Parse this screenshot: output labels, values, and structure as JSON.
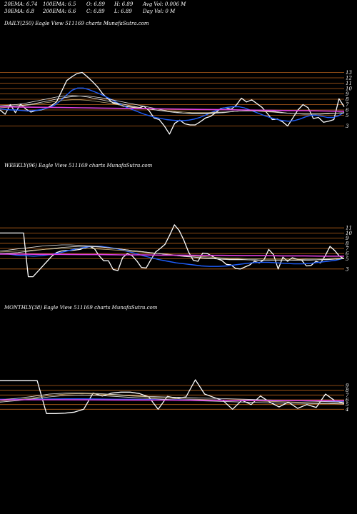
{
  "header": {
    "ema20": "20EMA: 6.74",
    "ema100": "100EMA: 6.5",
    "open": "O: 6.89",
    "high": "H: 6.89",
    "avg_vol": "Avg Vol: 0.006  M",
    "ema30": "30EMA: 6.8",
    "ema200": "200EMA: 6.6",
    "close": "C: 6.89",
    "low": "L: 6.89",
    "day_vol": "Day Vol: 0  M"
  },
  "colors": {
    "background": "#000000",
    "price": "#ffffff",
    "ema_short": "#1f5fff",
    "ema_mid": "#e0e0e0",
    "ema_tan": "#c8b27a",
    "avg_line": "#e040e0",
    "grid": "#b8621b"
  },
  "chart_data": [
    {
      "type": "line",
      "title": "DAILY(250) Eagle  View  511169 charts MunafaSutra.com",
      "ticks": [
        "13",
        "12",
        "11",
        "10",
        "9",
        "8",
        "7",
        "6",
        "5",
        "3"
      ],
      "tick_values": [
        13,
        12,
        11,
        10,
        9,
        8,
        7,
        6,
        5,
        3
      ],
      "ylim": [
        2,
        14
      ],
      "series": [
        {
          "role": "price",
          "color": "#ffffff",
          "values": [
            6,
            5.2,
            7,
            5.5,
            7.1,
            6.2,
            5.6,
            5.9,
            6,
            6.3,
            6.8,
            7.5,
            9.5,
            11.5,
            12.2,
            12.8,
            13,
            12.2,
            11.3,
            10.3,
            9,
            8.1,
            7.3,
            7.1,
            6.7,
            6.6,
            6.5,
            6.4,
            6.7,
            5.9,
            4.5,
            4.2,
            3,
            1.5,
            3.5,
            4.1,
            3.4,
            3.2,
            3.2,
            3.8,
            4.5,
            4.8,
            5.5,
            6.3,
            6.4,
            6.1,
            6.9,
            8.2,
            7.5,
            7.9,
            7.2,
            6.5,
            5.4,
            4.2,
            4.3,
            3.8,
            3,
            4.5,
            6,
            7,
            6.4,
            4.4,
            4.6,
            3.7,
            3.9,
            4.2,
            8.1,
            6.6
          ]
        },
        {
          "role": "ema-fast",
          "color": "#1f5fff",
          "values": [
            6.2,
            6.1,
            6,
            6,
            5.9,
            5.8,
            5.9,
            6,
            6.2,
            6.5,
            7,
            7.8,
            8.8,
            9.7,
            10.1,
            10.1,
            9.8,
            9.4,
            9,
            8.5,
            8,
            7.4,
            6.9,
            6.4,
            6,
            5.6,
            5.2,
            4.9,
            4.6,
            4.4,
            4.2,
            4.1,
            4,
            4,
            4.1,
            4.3,
            4.6,
            5,
            5.5,
            5.9,
            6.3,
            6.5,
            6.6,
            6.6,
            6.4,
            6,
            5.6,
            5.2,
            4.8,
            4.5,
            4.2,
            4,
            3.9,
            4,
            4.3,
            4.7,
            5,
            5,
            4.8,
            4.6,
            4.6,
            4.9,
            5.6
          ]
        },
        {
          "role": "ema-slow-1",
          "color": "#e0e0e0",
          "values": [
            6.6,
            6.7,
            6.8,
            6.9,
            7.1,
            7.4,
            7.7,
            8,
            8.3,
            8.5,
            8.6,
            8.6,
            8.4,
            8.2,
            7.9,
            7.6,
            7.3,
            7,
            6.7,
            6.4,
            6.1,
            5.8,
            5.6,
            5.4,
            5.3,
            5.3,
            5.3,
            5.4,
            5.5,
            5.7,
            5.8,
            5.9,
            5.9,
            5.9,
            5.8,
            5.6,
            5.4,
            5.3,
            5.3,
            5.3,
            5.3,
            5.3,
            5.4,
            5.5
          ]
        },
        {
          "role": "ema-slow-2",
          "color": "#c8b27a",
          "values": [
            6.4,
            6.5,
            6.6,
            6.8,
            7,
            7.2,
            7.4,
            7.6,
            7.8,
            7.9,
            7.9,
            7.8,
            7.6,
            7.4,
            7.2,
            6.9,
            6.7,
            6.5,
            6.3,
            6.1,
            5.9,
            5.8,
            5.7,
            5.6,
            5.5,
            5.5,
            5.5,
            5.6,
            5.6,
            5.7,
            5.8,
            5.8,
            5.8,
            5.7,
            5.6,
            5.5,
            5.4,
            5.3,
            5.3,
            5.3,
            5.3,
            5.4,
            5.4,
            5.5
          ]
        },
        {
          "role": "ema-slow-3",
          "color": "#e0e0e0",
          "values": [
            6.8,
            6.9,
            7,
            7.2,
            7.5,
            7.8,
            8.1,
            8.4,
            8.6,
            8.7,
            8.6,
            8.4,
            8.1,
            7.8,
            7.5,
            7.2,
            6.9,
            6.6,
            6.3,
            6.1,
            5.9,
            5.7,
            5.5,
            5.4,
            5.4,
            5.4,
            5.4,
            5.5,
            5.6,
            5.7,
            5.8,
            5.8,
            5.8,
            5.8,
            5.7,
            5.5,
            5.4,
            5.3,
            5.2,
            5.2,
            5.2,
            5.3,
            5.4,
            5.4
          ]
        },
        {
          "role": "average",
          "color": "#e040e0",
          "values": [
            6.6,
            6.55,
            6.5,
            6.45,
            6.4,
            6.35,
            6.3,
            6.25,
            6.2,
            6.15,
            6.1,
            6.05,
            6,
            5.95,
            5.9,
            5.85,
            5.8,
            5.75
          ]
        }
      ]
    },
    {
      "type": "line",
      "title": "WEEKLY(96) Eagle  View  511169 charts MunafaSutra.com",
      "ticks": [
        "11",
        "10",
        "9",
        "8",
        "7",
        "6",
        "5",
        "3"
      ],
      "tick_values": [
        11,
        10,
        9,
        8,
        7,
        6,
        5,
        3
      ],
      "ylim": [
        2,
        12
      ],
      "series": [
        {
          "role": "price",
          "color": "#ffffff",
          "values": [
            10,
            10,
            10,
            10,
            10,
            10,
            1.5,
            1.5,
            2.5,
            3.5,
            4.5,
            5.5,
            6.2,
            6.5,
            6.6,
            6.6,
            6.7,
            6.8,
            7.1,
            7.4,
            7,
            5.6,
            4.6,
            4.6,
            2.9,
            2.7,
            5.2,
            6,
            5.6,
            4.6,
            3.3,
            3.2,
            4.8,
            6.3,
            7,
            7.8,
            9.6,
            11.6,
            10.5,
            8.6,
            6.3,
            4.7,
            4.5,
            6.1,
            6,
            5.5,
            5,
            4.7,
            3.9,
            3.8,
            3.1,
            3,
            3.4,
            3.8,
            4.5,
            4.2,
            4.8,
            6.8,
            5.8,
            3,
            5.3,
            4.5,
            5.2,
            4.9,
            4.7,
            3.6,
            3.7,
            4.5,
            4.2,
            5.6,
            7.4,
            6.6,
            5.5,
            5
          ]
        },
        {
          "role": "ema-fast",
          "color": "#1f5fff",
          "values": [
            6,
            5.9,
            5.7,
            5.6,
            5.5,
            5.6,
            5.8,
            6.1,
            6.5,
            6.9,
            7.2,
            7.4,
            7.4,
            7.2,
            6.9,
            6.5,
            6.1,
            5.6,
            5.2,
            4.8,
            4.5,
            4.2,
            4,
            3.8,
            3.6,
            3.5,
            3.5,
            3.6,
            3.8,
            4,
            4.2,
            4.3,
            4.3,
            4.2,
            4.1,
            4,
            4,
            4.1,
            4.3,
            4.5,
            4.7,
            5.1
          ]
        },
        {
          "role": "ema-slow-1",
          "color": "#e0e0e0",
          "values": [
            6,
            6.1,
            6.2,
            6.4,
            6.6,
            6.8,
            7,
            7.2,
            7.3,
            7.4,
            7.4,
            7.3,
            7.2,
            7,
            6.8,
            6.6,
            6.4,
            6.2,
            6,
            5.8,
            5.6,
            5.5,
            5.3,
            5.2,
            5.1,
            5,
            4.9,
            4.9,
            4.8,
            4.8,
            4.7,
            4.7,
            4.7,
            4.7,
            4.7,
            4.7,
            4.8,
            4.8,
            4.9,
            5
          ]
        },
        {
          "role": "ema-slow-2",
          "color": "#c8b27a",
          "values": [
            6.3,
            6.4,
            6.5,
            6.6,
            6.7,
            6.8,
            6.9,
            7,
            7,
            7,
            7,
            6.9,
            6.8,
            6.7,
            6.6,
            6.4,
            6.3,
            6.1,
            6,
            5.9,
            5.7,
            5.6,
            5.5,
            5.4,
            5.3,
            5.2,
            5.1,
            5.1,
            5,
            5,
            4.9,
            4.9,
            4.9,
            4.9,
            4.9,
            5,
            5,
            5,
            5.1,
            5.1
          ]
        },
        {
          "role": "ema-slow-3",
          "color": "#e0e0e0",
          "values": [
            6.5,
            6.7,
            6.9,
            7.1,
            7.3,
            7.5,
            7.6,
            7.7,
            7.7,
            7.6,
            7.5,
            7.4,
            7.2,
            7,
            6.8,
            6.6,
            6.4,
            6.2,
            6,
            5.8,
            5.6,
            5.4,
            5.3,
            5.1,
            5,
            4.9,
            4.8,
            4.8,
            4.8,
            4.7,
            4.7,
            4.7,
            4.7,
            4.7,
            4.8,
            4.8,
            4.8,
            4.9,
            4.9,
            5
          ]
        },
        {
          "role": "average",
          "color": "#e040e0",
          "values": [
            5.9,
            5.9,
            5.85,
            5.85,
            5.8,
            5.8,
            5.75,
            5.75,
            5.7,
            5.7,
            5.65,
            5.65,
            5.6,
            5.6,
            5.55,
            5.55,
            5.5,
            5.5
          ]
        }
      ]
    },
    {
      "type": "line",
      "title": "MONTHLY(38) Eagle  View  511169 charts MunafaSutra.com",
      "ticks": [
        "9",
        "8",
        "7",
        "6",
        "5",
        "4"
      ],
      "tick_values": [
        9,
        8,
        7,
        6,
        5,
        4
      ],
      "ylim": [
        3,
        10.5
      ],
      "series": [
        {
          "role": "price",
          "color": "#ffffff",
          "values": [
            10,
            10,
            10,
            10,
            10,
            3.1,
            3.1,
            3.2,
            3.4,
            4,
            7.4,
            6.8,
            7.4,
            7.6,
            7.6,
            7.3,
            6.6,
            4,
            6.7,
            6.3,
            6.6,
            10.2,
            7.2,
            6.5,
            5.8,
            4,
            5.9,
            5,
            6.8,
            5.5,
            4.5,
            5.5,
            4.2,
            5,
            4.4,
            7.2,
            5.8,
            5.2
          ]
        },
        {
          "role": "ema-fast",
          "color": "#1f5fff",
          "values": [
            6.1,
            6.1,
            6.1,
            6.15,
            6.2,
            6.2,
            6.15,
            6.1,
            6.1,
            6.05,
            6,
            6,
            5.95,
            5.95,
            5.9,
            5.9,
            5.85,
            5.8,
            5.8,
            5.75,
            5.7,
            5.7
          ]
        },
        {
          "role": "ema-slow-1",
          "color": "#e0e0e0",
          "values": [
            6,
            6.3,
            6.7,
            7.2,
            7.4,
            7.4,
            7.3,
            7.1,
            6.9,
            6.7,
            6.6,
            6.5,
            6.4,
            6.3,
            6.2,
            6.1,
            6,
            5.9,
            5.8,
            5.7,
            5.6,
            5.5
          ]
        },
        {
          "role": "ema-slow-2",
          "color": "#c8b27a",
          "values": [
            5.7,
            6,
            6.4,
            6.9,
            7.2,
            7.3,
            7.2,
            7,
            6.8,
            6.6,
            6.4,
            6.2,
            6.1,
            6,
            5.9,
            5.8,
            5.7,
            5.6,
            5.5,
            5.4,
            5.3,
            5.3
          ]
        },
        {
          "role": "ema-slow-3",
          "color": "#e0e0e0",
          "values": [
            5.5,
            5.8,
            6.2,
            6.6,
            6.9,
            7,
            6.9,
            6.7,
            6.5,
            6.3,
            6.1,
            5.9,
            5.8,
            5.7,
            5.6,
            5.5,
            5.4,
            5.3,
            5.3,
            5.2,
            5.2,
            5.1
          ]
        },
        {
          "role": "average",
          "color": "#e040e0",
          "values": [
            6,
            6,
            6,
            5.98,
            5.96,
            5.94,
            5.92,
            5.9,
            5.88,
            5.86,
            5.84,
            5.82,
            5.8
          ]
        }
      ]
    }
  ]
}
